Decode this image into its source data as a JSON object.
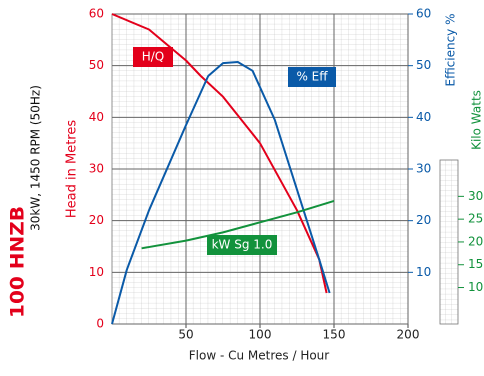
{
  "chart_data": {
    "type": "line",
    "title": "100 HNZB",
    "subtitle": "30kW, 1450 RPM (50Hz)",
    "xlabel": "Flow - Cu Metres / Hour",
    "ylabel": "Head in Metres",
    "y2label": "Efficiency %",
    "y3label": "Kilo Watts",
    "xlim": [
      0,
      200
    ],
    "xticks": [
      50,
      100,
      150,
      200
    ],
    "ylim": [
      0,
      60
    ],
    "yticks": [
      0,
      10,
      20,
      30,
      40,
      50,
      60
    ],
    "y2lim": [
      0,
      60
    ],
    "y2ticks": [
      10,
      20,
      30,
      40,
      50,
      60
    ],
    "y3lim": [
      2,
      70
    ],
    "y3ticks": [
      10,
      15,
      20,
      25,
      30
    ],
    "grid": true,
    "series": [
      {
        "name": "H/Q",
        "color": "#e3001b",
        "axis": "y",
        "x": [
          0,
          25,
          50,
          60,
          75,
          100,
          125,
          140,
          145
        ],
        "values": [
          60,
          57,
          51,
          48,
          44,
          35,
          22,
          12.5,
          6
        ]
      },
      {
        "name": "% Eff",
        "color": "#0a5aa8",
        "axis": "y2",
        "x": [
          0,
          10,
          25,
          50,
          65,
          75,
          85,
          95,
          110,
          125,
          140,
          147
        ],
        "values": [
          0,
          10.5,
          22,
          38.5,
          48,
          50.5,
          50.7,
          49,
          39.5,
          26,
          12.5,
          6
        ]
      },
      {
        "name": "kW Sg 1.0",
        "color": "#12923c",
        "axis": "y3",
        "x": [
          20,
          50,
          75,
          100,
          125,
          150
        ],
        "values": [
          18.6,
          20.3,
          22.1,
          24.3,
          26.5,
          29
        ]
      }
    ]
  }
}
